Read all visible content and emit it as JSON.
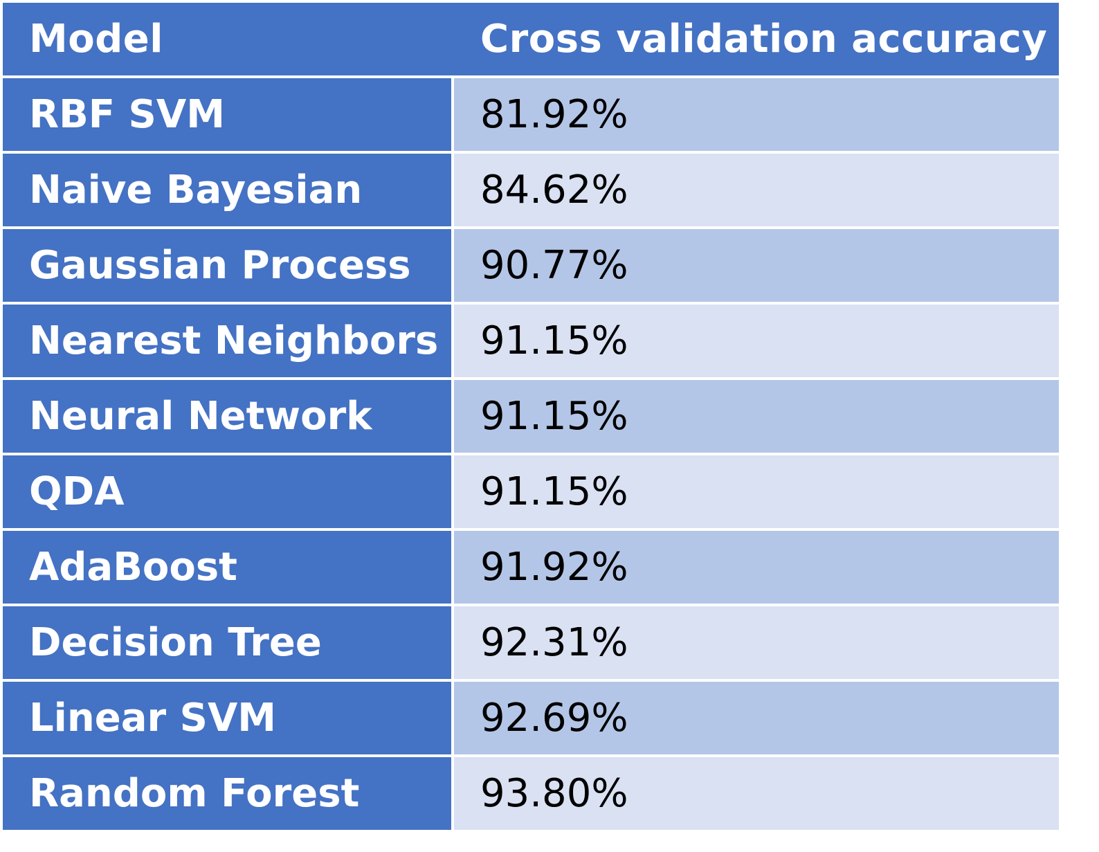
{
  "chart_data": {
    "type": "table",
    "columns": [
      "Model",
      "Cross validation accuracy"
    ],
    "rows": [
      {
        "model": "RBF SVM",
        "accuracy": "81.92%"
      },
      {
        "model": "Naive Bayesian",
        "accuracy": "84.62%"
      },
      {
        "model": "Gaussian Process",
        "accuracy": "90.77%"
      },
      {
        "model": "Nearest Neighbors",
        "accuracy": "91.15%"
      },
      {
        "model": "Neural Network",
        "accuracy": "91.15%"
      },
      {
        "model": "QDA",
        "accuracy": "91.15%"
      },
      {
        "model": "AdaBoost",
        "accuracy": "91.92%"
      },
      {
        "model": "Decision Tree",
        "accuracy": "92.31%"
      },
      {
        "model": "Linear SVM",
        "accuracy": "92.69%"
      },
      {
        "model": "Random Forest",
        "accuracy": "93.80%"
      }
    ]
  },
  "colors": {
    "header_bg": "#4472c4",
    "model_bg": "#4472c4",
    "row_odd_bg": "#b4c6e7",
    "row_even_bg": "#d9e1f2",
    "header_text": "#ffffff",
    "value_text": "#000000"
  }
}
